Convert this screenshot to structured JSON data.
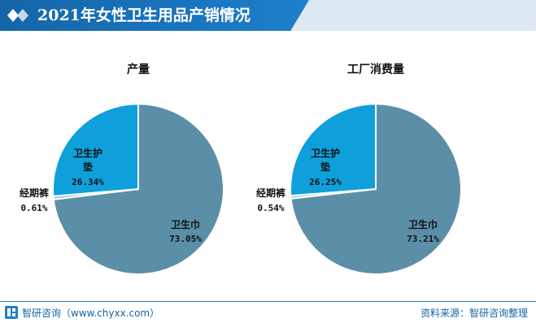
{
  "header": {
    "title": "2021年女性卫生用品产销情况"
  },
  "footer": {
    "left": "智研咨询（www.chyxx.com）",
    "right": "资料来源：智研咨询整理"
  },
  "colors": {
    "accent": "#1d7fcc",
    "title_bar_bg": "#dde8f1",
    "slice_sanitary_pad": "#5b8fa8",
    "slice_panty_liner": "#0fa0dc",
    "slice_period_pants": "#8fc1db"
  },
  "chart_data": [
    {
      "type": "pie",
      "title": "产量",
      "slices": [
        {
          "label": "卫生巾",
          "value": 73.05,
          "value_label": "73.05%"
        },
        {
          "label": "经期裤",
          "value": 0.61,
          "value_label": "0.61%"
        },
        {
          "label": "卫生护垫",
          "value": 26.34,
          "value_label": "26.34%"
        }
      ]
    },
    {
      "type": "pie",
      "title": "工厂消费量",
      "slices": [
        {
          "label": "卫生巾",
          "value": 73.21,
          "value_label": "73.21%"
        },
        {
          "label": "经期裤",
          "value": 0.54,
          "value_label": "0.54%"
        },
        {
          "label": "卫生护垫",
          "value": 26.25,
          "value_label": "26.25%"
        }
      ]
    }
  ]
}
